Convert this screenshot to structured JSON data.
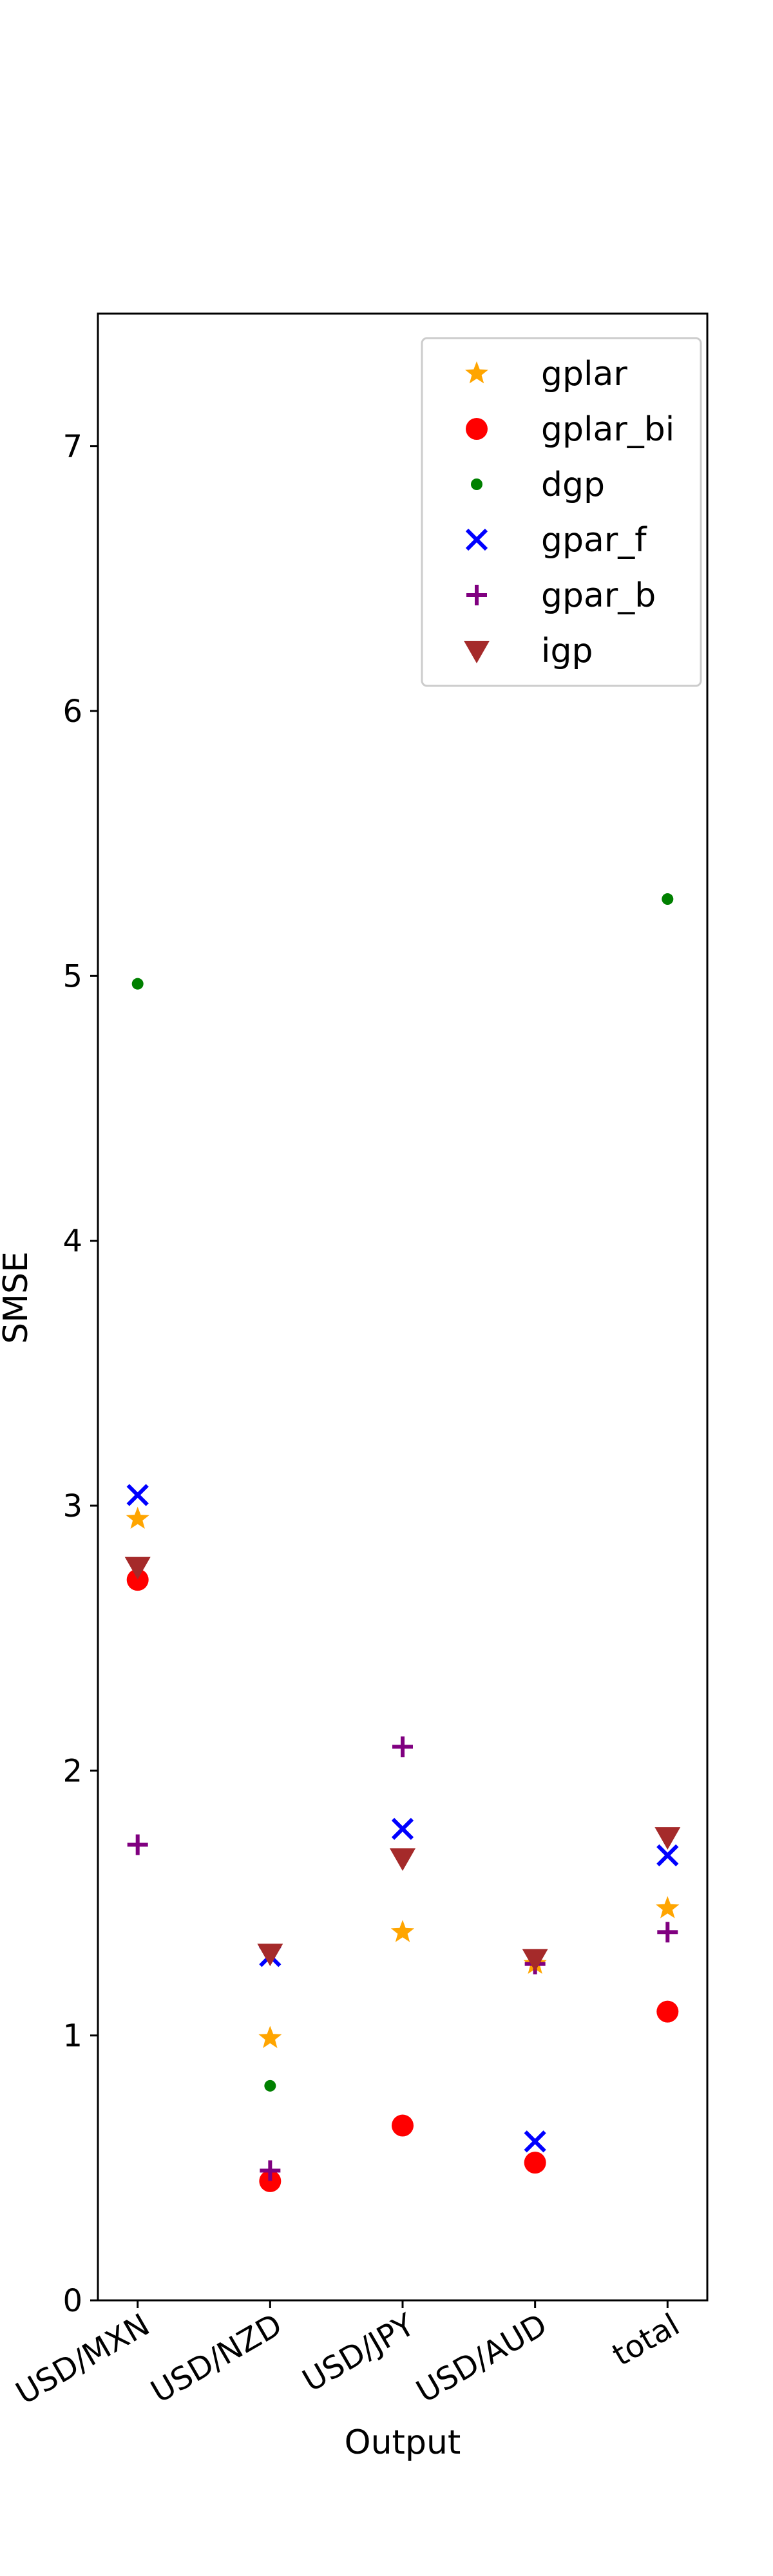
{
  "chart_data": {
    "type": "scatter",
    "xlabel": "Output",
    "ylabel": "SMSE",
    "categories": [
      "USD/MXN",
      "USD/NZD",
      "USD/JPY",
      "USD/AUD",
      "total"
    ],
    "ylim": [
      0,
      7.5
    ],
    "yticks": [
      0,
      1,
      2,
      3,
      4,
      5,
      6,
      7
    ],
    "ytick_labels": [
      "0",
      "1",
      "2",
      "3",
      "4",
      "5",
      "6",
      "7"
    ],
    "grid": false,
    "legend_position": "top-right",
    "series": [
      {
        "name": "gplar",
        "marker": "star",
        "color": "#ffa500",
        "values": [
          2.95,
          0.99,
          1.39,
          1.27,
          1.48
        ]
      },
      {
        "name": "gplar_bi",
        "marker": "circle",
        "color": "#ff0000",
        "values": [
          2.72,
          0.45,
          0.66,
          0.52,
          1.09
        ]
      },
      {
        "name": "dgp",
        "marker": "dot",
        "color": "#008000",
        "values": [
          4.97,
          0.81,
          null,
          null,
          5.29
        ]
      },
      {
        "name": "gpar_f",
        "marker": "x",
        "color": "#0000ff",
        "values": [
          3.04,
          1.3,
          1.78,
          0.6,
          1.68
        ]
      },
      {
        "name": "gpar_b",
        "marker": "plus",
        "color": "#800080",
        "values": [
          1.72,
          0.49,
          2.09,
          1.27,
          1.39
        ]
      },
      {
        "name": "igp",
        "marker": "triangle-down",
        "color": "#a52a2a",
        "values": [
          2.77,
          1.31,
          1.67,
          1.29,
          1.75
        ]
      }
    ]
  }
}
